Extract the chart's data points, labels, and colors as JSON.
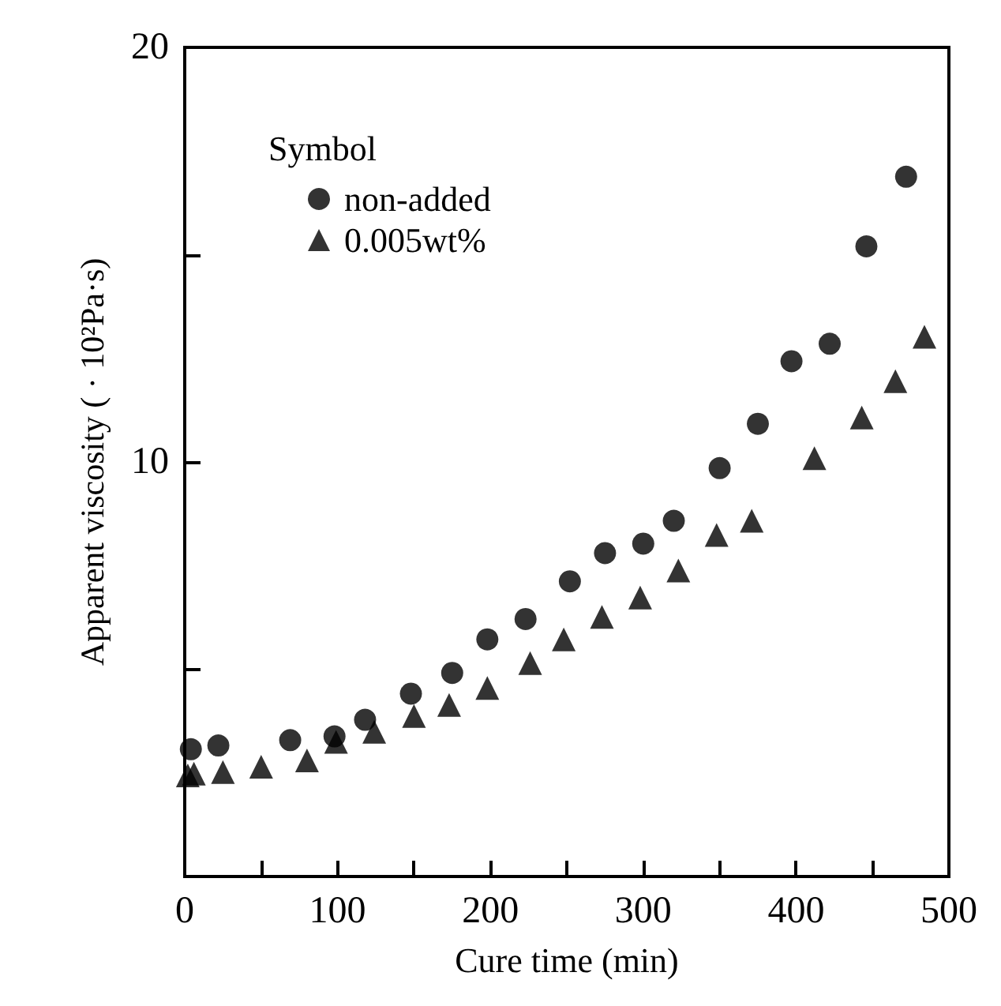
{
  "chart_data": {
    "type": "scatter",
    "xlabel": "Cure time (min)",
    "ylabel": "Apparent viscosity ( · 10²Pa·s)",
    "legend_title": "Symbol",
    "legend": "top left",
    "grid": false,
    "xlim": [
      0,
      500
    ],
    "xticks": [
      0,
      {
        "value": 50,
        "label": null
      },
      100,
      {
        "value": 150,
        "label": null
      },
      200,
      {
        "value": 250,
        "label": null
      },
      300,
      {
        "value": 350,
        "label": null
      },
      400,
      {
        "value": 450,
        "label": null
      },
      500
    ],
    "ylim": [
      0,
      20
    ],
    "yticks": [
      {
        "value": 0,
        "label": null
      },
      {
        "value": 5,
        "label": null
      },
      10,
      {
        "value": 15,
        "label": null
      },
      20
    ],
    "series": [
      {
        "name": "non-added",
        "color": "#000000",
        "marker": "circle",
        "x": [
          4,
          22,
          69,
          98,
          118,
          148,
          175,
          198,
          223,
          252,
          275,
          300,
          320,
          350,
          375,
          397,
          422,
          446,
          472
        ],
        "values": [
          3.07,
          3.16,
          3.29,
          3.38,
          3.78,
          4.41,
          4.91,
          5.72,
          6.21,
          7.12,
          7.8,
          8.03,
          8.58,
          9.85,
          10.92,
          12.43,
          12.85,
          15.2,
          16.88
        ]
      },
      {
        "name": "0.005wt%",
        "color": "#000000",
        "marker": "triangle",
        "x": [
          2,
          6,
          25,
          50,
          80,
          99,
          124,
          150,
          173,
          198,
          226,
          248,
          273,
          298,
          323,
          348,
          371,
          412,
          443,
          465,
          484
        ],
        "values": [
          2.44,
          2.48,
          2.52,
          2.65,
          2.8,
          3.25,
          3.49,
          3.87,
          4.14,
          4.55,
          5.15,
          5.72,
          6.26,
          6.73,
          7.38,
          8.24,
          8.58,
          10.09,
          11.07,
          11.95,
          13.02
        ]
      }
    ]
  }
}
